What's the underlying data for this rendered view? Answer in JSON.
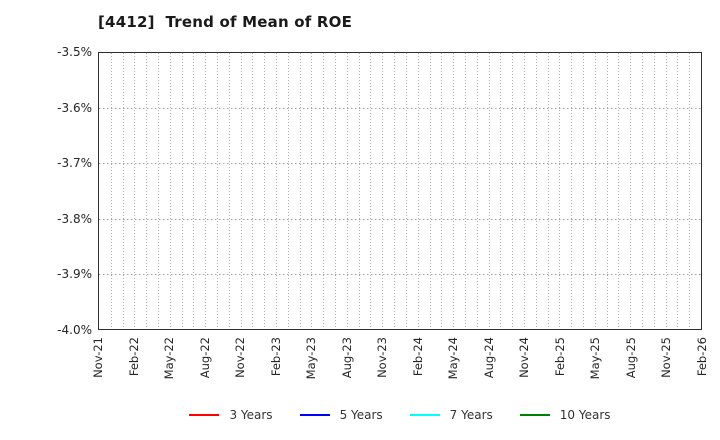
{
  "chart_data": {
    "type": "line",
    "title": "[4412]  Trend of Mean of ROE",
    "xlabel": "",
    "ylabel": "",
    "ylim": [
      -4.0,
      -3.5
    ],
    "y_tick_labels": [
      "-3.5%",
      "-3.6%",
      "-3.7%",
      "-3.8%",
      "-3.9%",
      "-4.0%"
    ],
    "x_tick_labels": [
      "Nov-21",
      "Feb-22",
      "May-22",
      "Aug-22",
      "Nov-22",
      "Feb-23",
      "May-23",
      "Aug-23",
      "Nov-23",
      "Feb-24",
      "May-24",
      "Aug-24",
      "Nov-24",
      "Feb-25",
      "May-25",
      "Aug-25",
      "Nov-25",
      "Feb-26"
    ],
    "months_between_labeled_ticks": 3,
    "total_month_intervals": 51,
    "grid": true,
    "grid_style": "dotted",
    "legend_position": "bottom",
    "series": [
      {
        "name": "3 Years",
        "color": "#ff0000",
        "values": []
      },
      {
        "name": "5 Years",
        "color": "#0000ff",
        "values": []
      },
      {
        "name": "7 Years",
        "color": "#00ffff",
        "values": []
      },
      {
        "name": "10 Years",
        "color": "#008000",
        "values": []
      }
    ]
  }
}
